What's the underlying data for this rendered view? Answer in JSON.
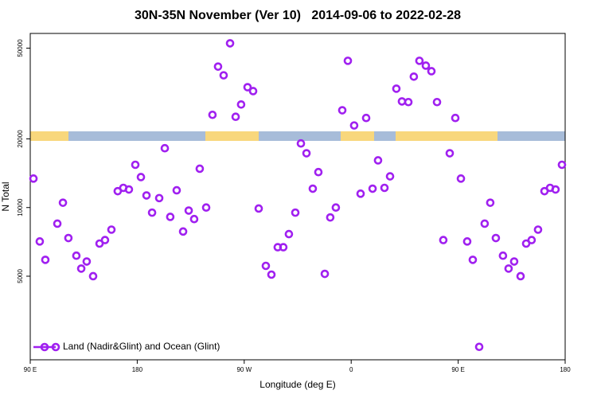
{
  "chart_data": {
    "type": "scatter",
    "title": "30N-35N November (Ver 10)   2014-09-06 to 2022-02-28",
    "xlabel": "Longitude (deg E)",
    "ylabel": "N Total",
    "yscale": "log",
    "xlim": [
      90,
      540
    ],
    "ylim": [
      2150,
      58000
    ],
    "xticks": [
      {
        "value": 90,
        "label": "90 E"
      },
      {
        "value": 180,
        "label": "180"
      },
      {
        "value": 270,
        "label": "90 W"
      },
      {
        "value": 360,
        "label": "0"
      },
      {
        "value": 450,
        "label": "90 E"
      },
      {
        "value": 540,
        "label": "180"
      }
    ],
    "yticks": [
      5000,
      10000,
      20000,
      50000
    ],
    "legend": "bottom-left",
    "x": [
      92.7,
      98.0,
      102.7,
      112.8,
      117.5,
      122.1,
      128.8,
      132.9,
      137.5,
      142.9,
      148.3,
      152.9,
      158.3,
      163.6,
      168.3,
      173.0,
      178.4,
      183.1,
      187.8,
      192.5,
      198.5,
      203.2,
      207.8,
      213.2,
      218.6,
      223.3,
      227.9,
      232.6,
      238.0,
      243.3,
      248.0,
      252.7,
      258.1,
      262.8,
      267.4,
      272.8,
      277.5,
      282.2,
      288.2,
      292.9,
      298.2,
      302.9,
      307.6,
      313.0,
      317.7,
      322.4,
      327.7,
      332.4,
      337.8,
      342.4,
      347.1,
      352.5,
      357.2,
      362.5,
      367.9,
      372.6,
      378.0,
      382.6,
      388.0,
      392.7,
      398.0,
      402.7,
      408.1,
      412.7,
      417.4,
      422.8,
      427.5,
      432.2,
      437.5,
      442.9,
      447.6,
      452.3,
      457.6,
      462.3,
      467.7,
      472.3,
      477.0,
      481.7,
      487.7,
      492.4,
      497.1,
      502.5,
      507.2,
      511.8,
      517.2,
      522.6,
      527.3,
      531.9,
      537.3
    ],
    "series": [
      {
        "name": "Land (Nadir&Glint) and Ocean (Glint)",
        "color": "#a020f0",
        "values": [
          13400,
          7100,
          5900,
          8500,
          10500,
          7350,
          6150,
          5400,
          5800,
          5000,
          6950,
          7200,
          8000,
          11800,
          12200,
          12000,
          15400,
          13600,
          11300,
          9500,
          11000,
          18200,
          9100,
          11900,
          7850,
          9700,
          8900,
          14800,
          10000,
          25500,
          41500,
          38000,
          52500,
          25000,
          28300,
          33700,
          32400,
          9900,
          5550,
          5080,
          6700,
          6700,
          7650,
          9500,
          19100,
          17300,
          12100,
          14300,
          5120,
          9050,
          10000,
          26700,
          44000,
          22900,
          11500,
          24700,
          12100,
          16100,
          12200,
          13700,
          33200,
          29200,
          29000,
          37500,
          44000,
          41900,
          39600,
          29000,
          7200,
          17300,
          24700,
          13400,
          7100,
          5900,
          2450,
          8500,
          10500,
          7350,
          6150,
          5400,
          5800,
          5000,
          6950,
          7200,
          8000,
          11800,
          12200,
          12000,
          15400
        ]
      }
    ]
  }
}
